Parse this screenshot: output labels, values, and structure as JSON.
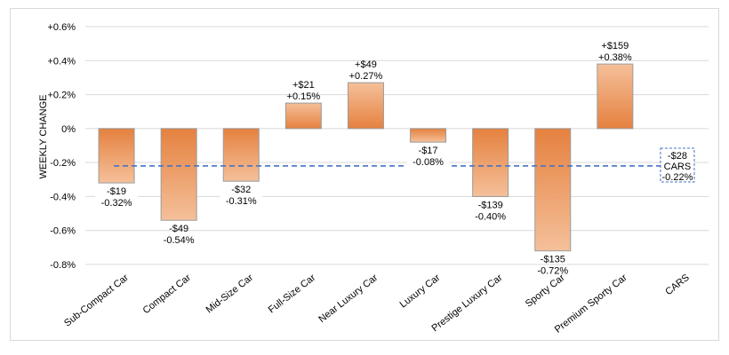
{
  "chart_data": {
    "type": "bar",
    "title": "",
    "xlabel": "",
    "ylabel": "WEEKLY CHANGE",
    "ylim": [
      -0.8,
      0.6
    ],
    "yticks": [
      {
        "value": 0.6,
        "label": "+0.6%"
      },
      {
        "value": 0.4,
        "label": "+0.4%"
      },
      {
        "value": 0.2,
        "label": "+0.2%"
      },
      {
        "value": 0,
        "label": "0%"
      },
      {
        "value": -0.2,
        "label": "-0.2%"
      },
      {
        "value": -0.4,
        "label": "-0.4%"
      },
      {
        "value": -0.6,
        "label": "-0.6%"
      },
      {
        "value": -0.8,
        "label": "-0.8%"
      }
    ],
    "grid": true,
    "categories": [
      "Sub-Compact Car",
      "Compact Car",
      "Mid-Size Car",
      "Full-Size Car",
      "Near Luxury Car",
      "Luxury Car",
      "Prestige Luxury Car",
      "Sporty Car",
      "Premium Sporty Car",
      "CARS"
    ],
    "values": [
      -0.32,
      -0.54,
      -0.31,
      0.15,
      0.27,
      -0.08,
      -0.4,
      -0.72,
      0.38,
      null
    ],
    "dollar_labels": [
      "-$19",
      "-$49",
      "-$32",
      "+$21",
      "+$49",
      "-$17",
      "-$139",
      "-$135",
      "+$159",
      null
    ],
    "pct_labels": [
      "-0.32%",
      "-0.54%",
      "-0.31%",
      "+0.15%",
      "+0.27%",
      "-0.08%",
      "-0.40%",
      "-0.72%",
      "+0.38%",
      null
    ],
    "reference": {
      "value": -0.22,
      "dollar_label": "-$28",
      "name_label": "CARS",
      "pct_label": "-0.22%",
      "style": "dashed",
      "color": "#4472C4"
    },
    "bar_color_dark": "#E5813F",
    "bar_color_light": "#F5C09A",
    "bar_border": "#9b9b9b"
  }
}
